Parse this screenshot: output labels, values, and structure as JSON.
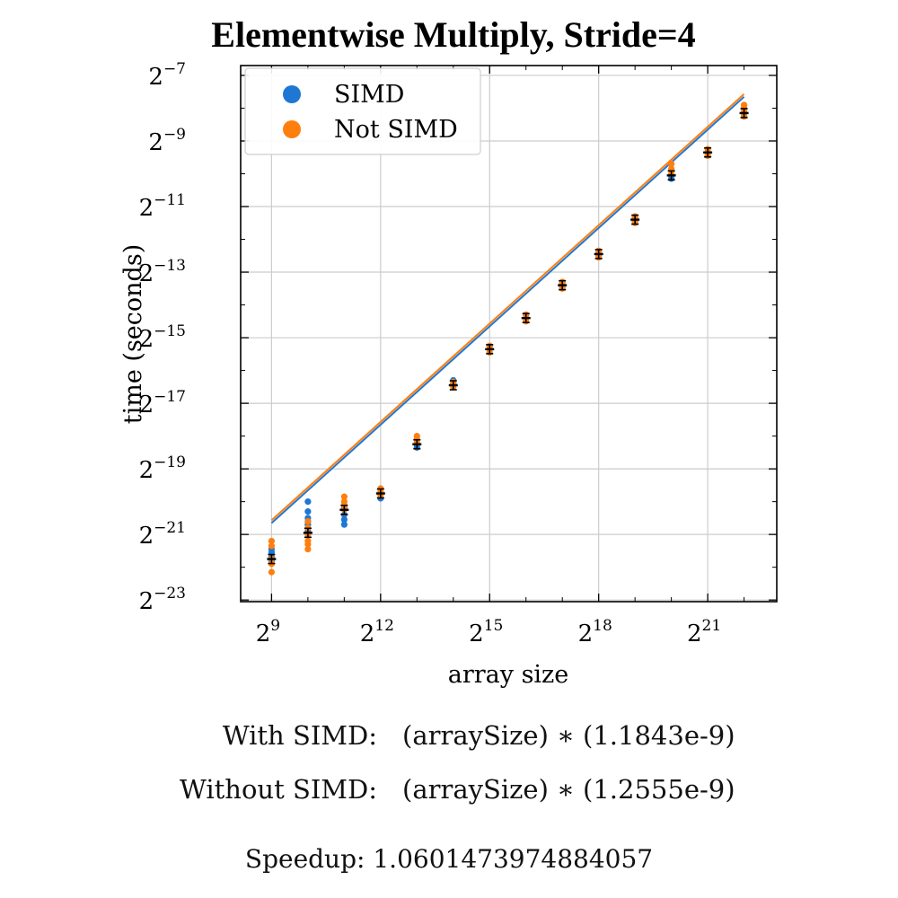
{
  "chart_data": {
    "type": "scatter",
    "title": "Elementwise Multiply, Stride=4",
    "xlabel": "array size",
    "ylabel": "time (seconds)",
    "xscale": "log2",
    "yscale": "log2",
    "xlim_log2": [
      8.15,
      22.9
    ],
    "ylim_log2": [
      -23.05,
      -6.7
    ],
    "xticks": [
      {
        "exp": 9,
        "label": "2",
        "sup": "9"
      },
      {
        "exp": 12,
        "label": "2",
        "sup": "12"
      },
      {
        "exp": 15,
        "label": "2",
        "sup": "15"
      },
      {
        "exp": 18,
        "label": "2",
        "sup": "18"
      },
      {
        "exp": 21,
        "label": "2",
        "sup": "21"
      }
    ],
    "yticks": [
      {
        "exp": -7,
        "label": "2",
        "sup": "−7"
      },
      {
        "exp": -9,
        "label": "2",
        "sup": "−9"
      },
      {
        "exp": -11,
        "label": "2",
        "sup": "−11"
      },
      {
        "exp": -13,
        "label": "2",
        "sup": "−13"
      },
      {
        "exp": -15,
        "label": "2",
        "sup": "−15"
      },
      {
        "exp": -17,
        "label": "2",
        "sup": "−17"
      },
      {
        "exp": -19,
        "label": "2",
        "sup": "−19"
      },
      {
        "exp": -21,
        "label": "2",
        "sup": "−21"
      },
      {
        "exp": -23,
        "label": "2",
        "sup": "−23"
      }
    ],
    "grid": true,
    "legend_position": "top-left",
    "series": [
      {
        "name": "SIMD",
        "color": "#1f77d4",
        "fit_coefficient": 1.1843e-09,
        "points": [
          {
            "x_exp": 9,
            "y_exp": [
              -21.55,
              -21.45,
              -21.7,
              -21.8
            ]
          },
          {
            "x_exp": 10,
            "y_exp": [
              -20.0,
              -20.3,
              -20.5,
              -20.6,
              -20.7,
              -20.9
            ]
          },
          {
            "x_exp": 11,
            "y_exp": [
              -20.2,
              -20.4,
              -20.55,
              -20.7
            ]
          },
          {
            "x_exp": 12,
            "y_exp": [
              -19.9,
              -19.75
            ]
          },
          {
            "x_exp": 13,
            "y_exp": [
              -18.35,
              -18.25
            ]
          },
          {
            "x_exp": 14,
            "y_exp": [
              -16.4,
              -16.3
            ]
          },
          {
            "x_exp": 15,
            "y_exp": [
              -15.35,
              -15.25
            ]
          },
          {
            "x_exp": 16,
            "y_exp": [
              -14.4,
              -14.3
            ]
          },
          {
            "x_exp": 17,
            "y_exp": [
              -13.45,
              -13.35
            ]
          },
          {
            "x_exp": 18,
            "y_exp": [
              -12.5,
              -12.4
            ]
          },
          {
            "x_exp": 19,
            "y_exp": [
              -11.45,
              -11.35
            ]
          },
          {
            "x_exp": 20,
            "y_exp": [
              -10.15,
              -10.05
            ]
          },
          {
            "x_exp": 21,
            "y_exp": [
              -9.45,
              -9.35
            ]
          },
          {
            "x_exp": 22,
            "y_exp": [
              -8.25,
              -8.15
            ]
          }
        ]
      },
      {
        "name": "Not SIMD",
        "color": "#ff7f0e",
        "fit_coefficient": 1.2555e-09,
        "points": [
          {
            "x_exp": 9,
            "y_exp": [
              -21.2,
              -21.35,
              -21.75,
              -21.9,
              -22.15
            ]
          },
          {
            "x_exp": 10,
            "y_exp": [
              -20.6,
              -20.8,
              -21.0,
              -21.2,
              -21.3,
              -21.45
            ]
          },
          {
            "x_exp": 11,
            "y_exp": [
              -19.85,
              -20.0,
              -20.1,
              -20.25
            ]
          },
          {
            "x_exp": 12,
            "y_exp": [
              -19.6,
              -19.7,
              -19.8
            ]
          },
          {
            "x_exp": 13,
            "y_exp": [
              -18.0,
              -18.1,
              -18.2
            ]
          },
          {
            "x_exp": 14,
            "y_exp": [
              -16.35,
              -16.45,
              -16.5
            ]
          },
          {
            "x_exp": 15,
            "y_exp": [
              -15.25,
              -15.35,
              -15.45
            ]
          },
          {
            "x_exp": 16,
            "y_exp": [
              -14.3,
              -14.4,
              -14.5
            ]
          },
          {
            "x_exp": 17,
            "y_exp": [
              -13.3,
              -13.4,
              -13.5
            ]
          },
          {
            "x_exp": 18,
            "y_exp": [
              -12.35,
              -12.45,
              -12.55
            ]
          },
          {
            "x_exp": 19,
            "y_exp": [
              -11.3,
              -11.4,
              -11.5
            ]
          },
          {
            "x_exp": 20,
            "y_exp": [
              -9.7,
              -9.85,
              -10.0
            ]
          },
          {
            "x_exp": 21,
            "y_exp": [
              -9.25,
              -9.35,
              -9.45
            ]
          },
          {
            "x_exp": 22,
            "y_exp": [
              -7.9,
              -8.0,
              -8.1,
              -8.25
            ]
          }
        ]
      }
    ],
    "means": [
      {
        "x_exp": 9,
        "y_exp": -21.75
      },
      {
        "x_exp": 10,
        "y_exp": -20.95
      },
      {
        "x_exp": 11,
        "y_exp": -20.25
      },
      {
        "x_exp": 12,
        "y_exp": -19.75
      },
      {
        "x_exp": 13,
        "y_exp": -18.25
      },
      {
        "x_exp": 14,
        "y_exp": -16.45
      },
      {
        "x_exp": 15,
        "y_exp": -15.35
      },
      {
        "x_exp": 16,
        "y_exp": -14.4
      },
      {
        "x_exp": 17,
        "y_exp": -13.4
      },
      {
        "x_exp": 18,
        "y_exp": -12.45
      },
      {
        "x_exp": 19,
        "y_exp": -11.4
      },
      {
        "x_exp": 20,
        "y_exp": -10.05
      },
      {
        "x_exp": 21,
        "y_exp": -9.35
      },
      {
        "x_exp": 22,
        "y_exp": -8.15
      }
    ]
  },
  "equations": {
    "simd_label": "With SIMD:",
    "simd_formula": "(arraySize) ∗ (1.1843e-9)",
    "nosimd_label": "Without SIMD:",
    "nosimd_formula": "(arraySize) ∗ (1.2555e-9)"
  },
  "speedup_text": "Speedup: 1.0601473974884057"
}
